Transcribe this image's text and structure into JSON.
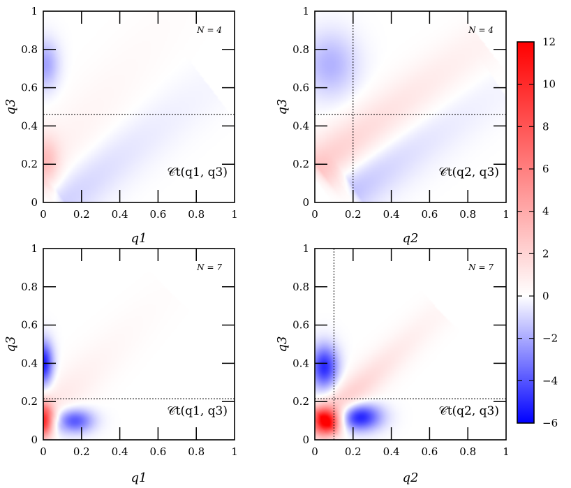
{
  "colors": {
    "negative": "#0000ff",
    "zero": "#ffffff",
    "positive": "#ff0000",
    "frame": "#000000"
  },
  "colorbar": {
    "min": -6,
    "max": 12,
    "ticks": [
      "12",
      "10",
      "8",
      "6",
      "4",
      "2",
      "0",
      "−2",
      "−4",
      "−6"
    ],
    "tick_values": [
      12,
      10,
      8,
      6,
      4,
      2,
      0,
      -2,
      -4,
      -6
    ]
  },
  "chart_data": [
    {
      "type": "heatmap",
      "id": "top-left",
      "annotation": "N = 4",
      "corr_label": "𝒞t(q1, q3)",
      "xlabel": "q1",
      "ylabel": "q3",
      "xlim": [
        0,
        1
      ],
      "ylim": [
        0,
        1
      ],
      "x_ticks": [
        "0",
        "0.2",
        "0.4",
        "0.6",
        "0.8",
        "1"
      ],
      "y_ticks": [
        "0",
        "0.2",
        "0.4",
        "0.6",
        "0.8",
        "1"
      ],
      "hline": 0.46,
      "vline": null,
      "features": [
        {
          "kind": "blob",
          "x": 0.01,
          "y": 0.72,
          "sx": 0.05,
          "sy": 0.09,
          "value": -2.2
        },
        {
          "kind": "blob",
          "x": 0.01,
          "y": 0.22,
          "sx": 0.05,
          "sy": 0.09,
          "value": 2.6
        },
        {
          "kind": "ridge",
          "x0": 0.03,
          "y0": 0.08,
          "x1": 0.7,
          "y1": 0.92,
          "offset": 0.06,
          "width": 0.11,
          "decay": 0.55,
          "value": 1.0
        },
        {
          "kind": "ridge",
          "x0": 0.1,
          "y0": 0.02,
          "x1": 0.8,
          "y1": 0.55,
          "offset": 0.0,
          "width": 0.1,
          "decay": 0.6,
          "value": -1.4
        }
      ]
    },
    {
      "type": "heatmap",
      "id": "top-right",
      "annotation": "N = 4",
      "corr_label": "𝒞t(q2, q3)",
      "xlabel": "q2",
      "ylabel": "q3",
      "xlim": [
        0,
        1
      ],
      "ylim": [
        0,
        1
      ],
      "x_ticks": [
        "0",
        "0.2",
        "0.4",
        "0.6",
        "0.8",
        "1"
      ],
      "y_ticks": [
        "0",
        "0.2",
        "0.4",
        "0.6",
        "0.8",
        "1"
      ],
      "hline": 0.46,
      "vline": 0.2,
      "features": [
        {
          "kind": "blob",
          "x": 0.08,
          "y": 0.72,
          "sx": 0.1,
          "sy": 0.12,
          "value": -1.8
        },
        {
          "kind": "ridge",
          "x0": 0.02,
          "y0": 0.18,
          "x1": 0.8,
          "y1": 0.78,
          "offset": 0.0,
          "width": 0.09,
          "decay": 0.7,
          "value": 2.8
        },
        {
          "kind": "ridge",
          "x0": 0.2,
          "y0": 0.08,
          "x1": 0.9,
          "y1": 0.55,
          "offset": 0.0,
          "width": 0.1,
          "decay": 0.6,
          "value": -1.6
        }
      ]
    },
    {
      "type": "heatmap",
      "id": "bottom-left",
      "annotation": "N = 7",
      "corr_label": "𝒞t(q1, q3)",
      "xlabel": "q1",
      "ylabel": "q3",
      "xlim": [
        0,
        1
      ],
      "ylim": [
        0,
        1
      ],
      "x_ticks": [
        "0",
        "0.2",
        "0.4",
        "0.6",
        "0.8",
        "1"
      ],
      "y_ticks": [
        "0",
        "0.2",
        "0.4",
        "0.6",
        "0.8",
        "1"
      ],
      "hline": 0.215,
      "vline": null,
      "features": [
        {
          "kind": "blob",
          "x": 0.0,
          "y": 0.4,
          "sx": 0.035,
          "sy": 0.08,
          "value": -5.5
        },
        {
          "kind": "blob",
          "x": 0.0,
          "y": 0.1,
          "sx": 0.035,
          "sy": 0.06,
          "value": 10.5
        },
        {
          "kind": "blob",
          "x": 0.16,
          "y": 0.1,
          "sx": 0.07,
          "sy": 0.045,
          "value": -4.2
        },
        {
          "kind": "ridge",
          "x0": 0.03,
          "y0": 0.15,
          "x1": 0.6,
          "y1": 0.72,
          "offset": 0.0,
          "width": 0.08,
          "decay": 0.45,
          "value": 1.4
        }
      ]
    },
    {
      "type": "heatmap",
      "id": "bottom-right",
      "annotation": "N = 7",
      "corr_label": "𝒞t(q2, q3)",
      "xlabel": "q2",
      "ylabel": "q3",
      "xlim": [
        0,
        1
      ],
      "ylim": [
        0,
        1
      ],
      "x_ticks": [
        "0",
        "0.2",
        "0.4",
        "0.6",
        "0.8",
        "1"
      ],
      "y_ticks": [
        "0",
        "0.2",
        "0.4",
        "0.6",
        "0.8",
        "1"
      ],
      "hline": 0.215,
      "vline": 0.1,
      "features": [
        {
          "kind": "blob",
          "x": 0.05,
          "y": 0.38,
          "sx": 0.05,
          "sy": 0.08,
          "value": -5.0
        },
        {
          "kind": "blob",
          "x": 0.05,
          "y": 0.09,
          "sx": 0.05,
          "sy": 0.05,
          "value": 11.0
        },
        {
          "kind": "blob",
          "x": 0.23,
          "y": 0.12,
          "sx": 0.08,
          "sy": 0.05,
          "value": -5.5
        },
        {
          "kind": "ridge",
          "x0": 0.05,
          "y0": 0.1,
          "x1": 0.6,
          "y1": 0.62,
          "offset": 0.0,
          "width": 0.06,
          "decay": 0.5,
          "value": 4.0
        }
      ]
    }
  ]
}
